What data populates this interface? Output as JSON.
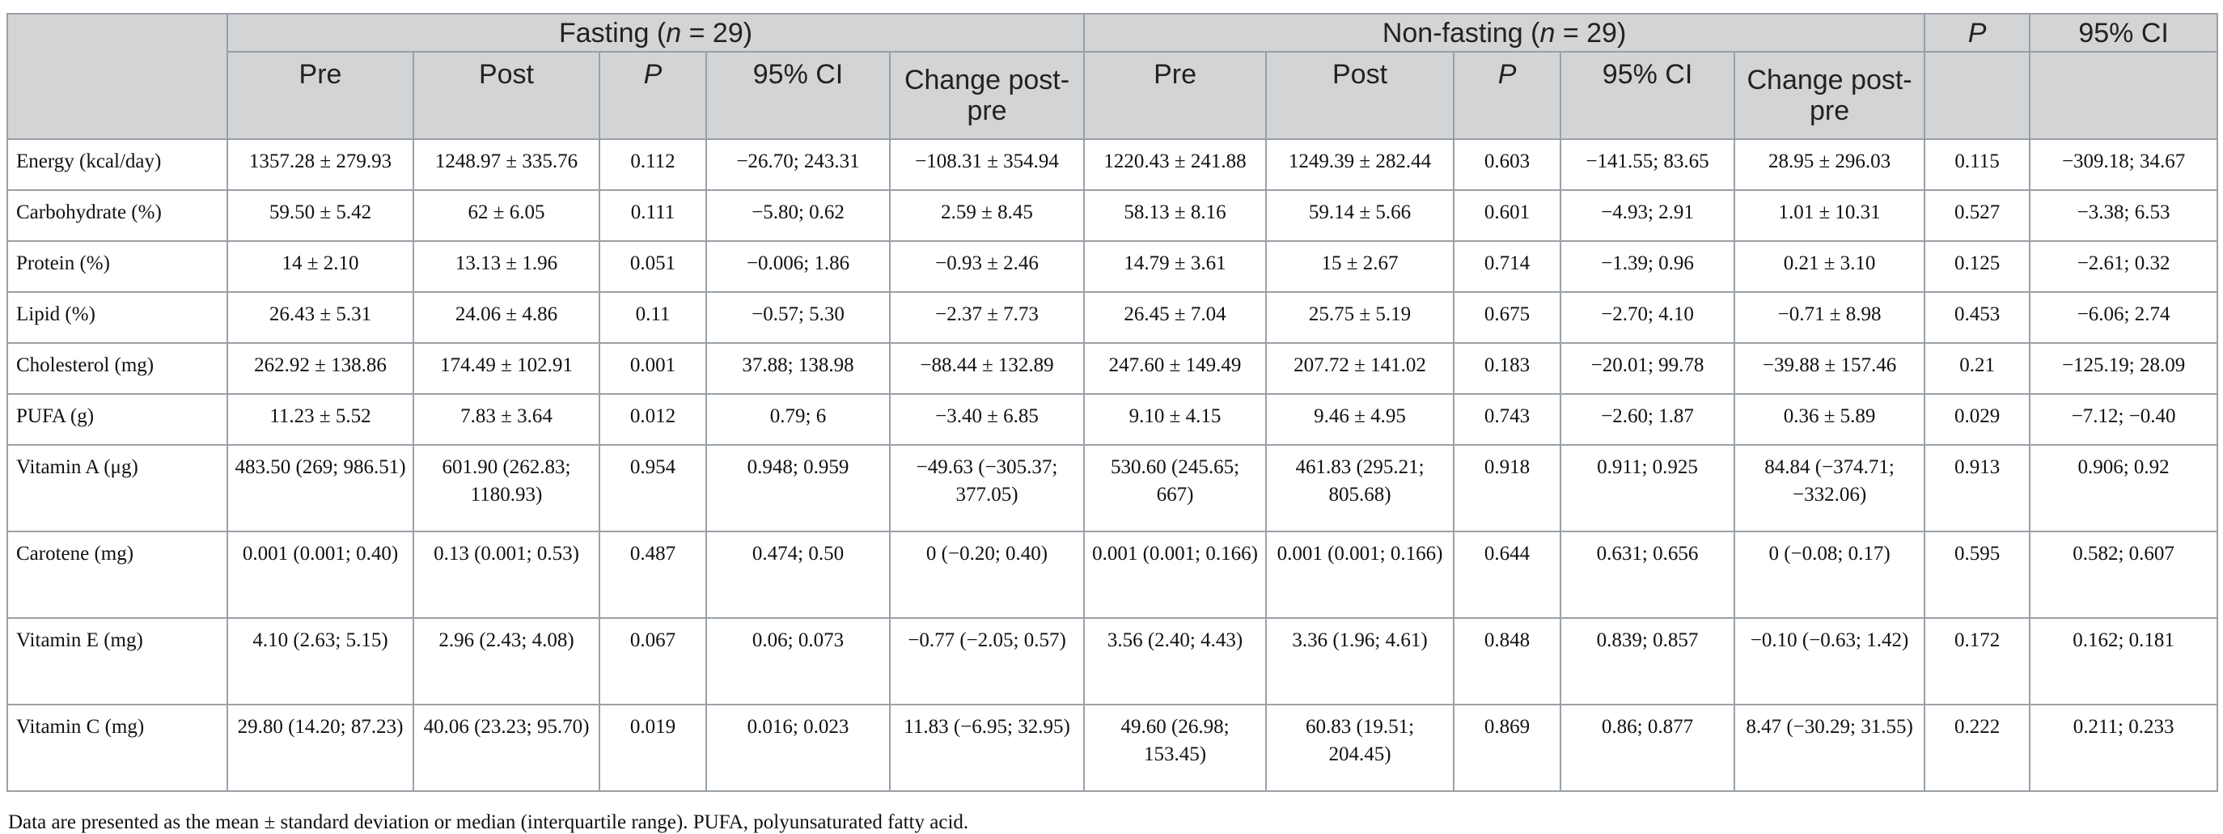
{
  "header": {
    "group1": "Fasting (n = 29)",
    "group2": "Non-fasting (n = 29)",
    "p_overall": "P",
    "ci_overall": "95% CI",
    "sub": [
      "Pre",
      "Post",
      "P",
      "95% CI",
      "Change post-pre",
      "Pre",
      "Post",
      "P",
      "95% CI",
      "Change post-pre"
    ]
  },
  "rows": [
    {
      "label": "Energy (kcal/day)",
      "cells": [
        "1357.28 ± 279.93",
        "1248.97 ± 335.76",
        "0.112",
        "−26.70; 243.31",
        "−108.31 ± 354.94",
        "1220.43 ± 241.88",
        "1249.39 ± 282.44",
        "0.603",
        "−141.55; 83.65",
        "28.95 ± 296.03",
        "0.115",
        "−309.18; 34.67"
      ]
    },
    {
      "label": "Carbohydrate (%)",
      "cells": [
        "59.50 ± 5.42",
        "62 ± 6.05",
        "0.111",
        "−5.80; 0.62",
        "2.59 ± 8.45",
        "58.13 ± 8.16",
        "59.14 ± 5.66",
        "0.601",
        "−4.93; 2.91",
        "1.01 ± 10.31",
        "0.527",
        "−3.38; 6.53"
      ]
    },
    {
      "label": "Protein (%)",
      "cells": [
        "14 ± 2.10",
        "13.13 ± 1.96",
        "0.051",
        "−0.006; 1.86",
        "−0.93 ± 2.46",
        "14.79 ± 3.61",
        "15 ± 2.67",
        "0.714",
        "−1.39; 0.96",
        "0.21 ± 3.10",
        "0.125",
        "−2.61; 0.32"
      ]
    },
    {
      "label": "Lipid (%)",
      "cells": [
        "26.43 ± 5.31",
        "24.06 ± 4.86",
        "0.11",
        "−0.57; 5.30",
        "−2.37 ± 7.73",
        "26.45 ± 7.04",
        "25.75 ± 5.19",
        "0.675",
        "−2.70; 4.10",
        "−0.71 ± 8.98",
        "0.453",
        "−6.06; 2.74"
      ]
    },
    {
      "label": "Cholesterol (mg)",
      "cells": [
        "262.92 ± 138.86",
        "174.49 ± 102.91",
        "0.001",
        "37.88; 138.98",
        "−88.44 ± 132.89",
        "247.60 ± 149.49",
        "207.72 ± 141.02",
        "0.183",
        "−20.01; 99.78",
        "−39.88 ± 157.46",
        "0.21",
        "−125.19; 28.09"
      ]
    },
    {
      "label": "PUFA (g)",
      "cells": [
        "11.23 ± 5.52",
        "7.83 ± 3.64",
        "0.012",
        "0.79; 6",
        "−3.40 ± 6.85",
        "9.10 ± 4.15",
        "9.46 ± 4.95",
        "0.743",
        "−2.60; 1.87",
        "0.36 ± 5.89",
        "0.029",
        "−7.12; −0.40"
      ]
    },
    {
      "label": "Vitamin A (μg)",
      "cells": [
        "483.50 (269; 986.51)",
        "601.90 (262.83; 1180.93)",
        "0.954",
        "0.948; 0.959",
        "−49.63 (−305.37; 377.05)",
        "530.60 (245.65; 667)",
        "461.83 (295.21; 805.68)",
        "0.918",
        "0.911; 0.925",
        "84.84 (−374.71; −332.06)",
        "0.913",
        "0.906; 0.92"
      ]
    },
    {
      "label": "Carotene (mg)",
      "cells": [
        "0.001 (0.001; 0.40)",
        "0.13 (0.001; 0.53)",
        "0.487",
        "0.474; 0.50",
        "0 (−0.20; 0.40)",
        "0.001 (0.001; 0.166)",
        "0.001 (0.001; 0.166)",
        "0.644",
        "0.631; 0.656",
        "0 (−0.08; 0.17)",
        "0.595",
        "0.582; 0.607"
      ]
    },
    {
      "label": "Vitamin E (mg)",
      "cells": [
        "4.10 (2.63; 5.15)",
        "2.96 (2.43; 4.08)",
        "0.067",
        "0.06; 0.073",
        "−0.77 (−2.05; 0.57)",
        "3.56 (2.40; 4.43)",
        "3.36 (1.96; 4.61)",
        "0.848",
        "0.839; 0.857",
        "−0.10 (−0.63; 1.42)",
        "0.172",
        "0.162; 0.181"
      ]
    },
    {
      "label": "Vitamin C (mg)",
      "cells": [
        "29.80 (14.20; 87.23)",
        "40.06 (23.23; 95.70)",
        "0.019",
        "0.016; 0.023",
        "11.83 (−6.95; 32.95)",
        "49.60 (26.98; 153.45)",
        "60.83 (19.51; 204.45)",
        "0.869",
        "0.86; 0.877",
        "8.47 (−30.29; 31.55)",
        "0.222",
        "0.211; 0.233"
      ]
    }
  ],
  "footnote": "Data are presented as the mean ± standard deviation or median (interquartile range). PUFA, polyunsaturated fatty acid."
}
